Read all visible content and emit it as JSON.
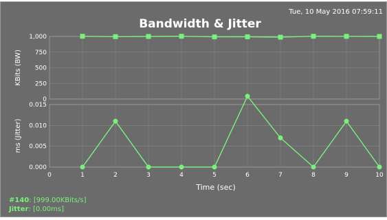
{
  "timestamp": "Tue, 10 May 2016 07:59:11",
  "chart_data": {
    "type": "line",
    "title": "Bandwidth & Jitter",
    "xlabel": "Time (sec)",
    "xlim": [
      0,
      10
    ],
    "x_ticks": [
      "0",
      "1",
      "2",
      "3",
      "4",
      "5",
      "6",
      "7",
      "8",
      "9",
      "10"
    ],
    "grid": true,
    "line_color": "#7cf07c",
    "panels": [
      {
        "ylabel": "KBits (BW)",
        "ylim": [
          0,
          1000
        ],
        "y_ticks": [
          "0",
          "250",
          "500",
          "750",
          "1,000"
        ],
        "series": [
          {
            "x": [
              1,
              2,
              3,
              4,
              5,
              6,
              7,
              8,
              9,
              10
            ],
            "values": [
              1003,
              997,
              1000,
              1003,
              993,
              995,
              988,
              1003,
              1002,
              1000
            ]
          }
        ]
      },
      {
        "ylabel": "ms (Jitter)",
        "ylim": [
          0,
          0.015
        ],
        "y_ticks": [
          "0.000",
          "0.005",
          "0.010",
          "0.015"
        ],
        "series": [
          {
            "x": [
              1,
              2,
              3,
              4,
              5,
              6,
              7,
              8,
              9,
              10
            ],
            "values": [
              0,
              0.011,
              0,
              0,
              0,
              0.017,
              0.007,
              0,
              0.011,
              0
            ]
          }
        ]
      }
    ]
  },
  "legend": {
    "bw_name": "#140",
    "bw_value": "[999.00KBits/s]",
    "jitter_name": "Jitter",
    "jitter_value": "[0.00ms]"
  }
}
